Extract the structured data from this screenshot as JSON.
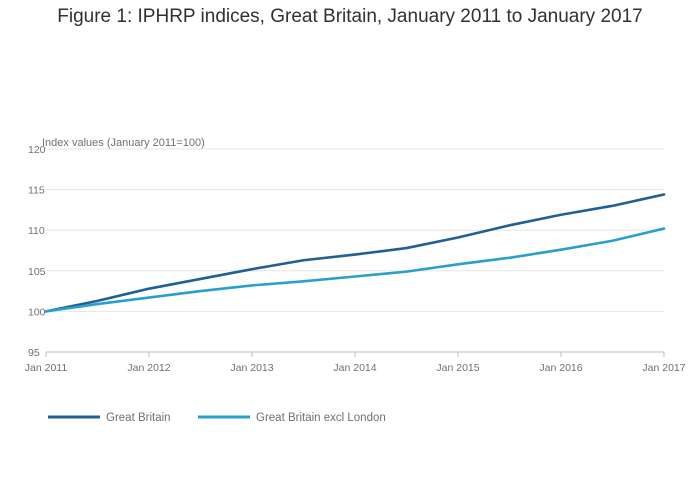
{
  "chart_data": {
    "type": "line",
    "title": "Figure 1: IPHRP indices, Great Britain, January 2011 to January 2017",
    "ylabel": "Index values (January 2011=100)",
    "xlabel": "",
    "ylim": [
      95,
      120
    ],
    "yticks": [
      95,
      100,
      105,
      110,
      115,
      120
    ],
    "xlim": [
      2011,
      2017
    ],
    "xticks": [
      {
        "x": 2011,
        "label": "Jan 2011"
      },
      {
        "x": 2012,
        "label": "Jan 2012"
      },
      {
        "x": 2013,
        "label": "Jan 2013"
      },
      {
        "x": 2014,
        "label": "Jan 2014"
      },
      {
        "x": 2015,
        "label": "Jan 2015"
      },
      {
        "x": 2016,
        "label": "Jan 2016"
      },
      {
        "x": 2017,
        "label": "Jan 2017"
      }
    ],
    "grid": true,
    "legend": "bottom-left",
    "series": [
      {
        "name": "Great Britain",
        "color": "#206095",
        "x": [
          2011,
          2011.5,
          2012,
          2012.5,
          2013,
          2013.5,
          2014,
          2014.5,
          2015,
          2015.5,
          2016,
          2016.5,
          2017
        ],
        "values": [
          100,
          101.3,
          102.8,
          104.0,
          105.2,
          106.3,
          107.0,
          107.8,
          109.1,
          110.6,
          111.9,
          113.0,
          114.4
        ]
      },
      {
        "name": "Great Britain excl London",
        "color": "#27a0cc",
        "x": [
          2011,
          2011.5,
          2012,
          2012.5,
          2013,
          2013.5,
          2014,
          2014.5,
          2015,
          2015.5,
          2016,
          2016.5,
          2017
        ],
        "values": [
          100,
          100.9,
          101.7,
          102.5,
          103.2,
          103.7,
          104.3,
          104.9,
          105.8,
          106.6,
          107.6,
          108.7,
          110.2
        ]
      }
    ]
  }
}
